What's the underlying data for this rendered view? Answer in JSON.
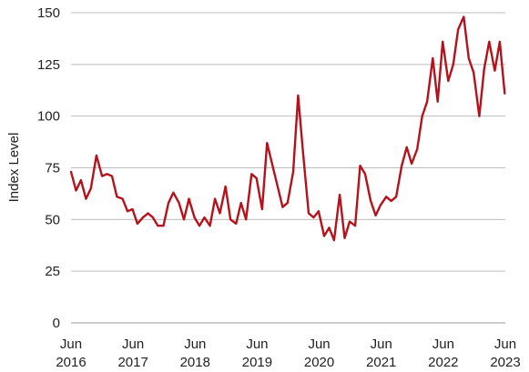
{
  "chart_data": {
    "type": "line",
    "ylabel": "Index Level",
    "xlabel": "",
    "ylim": [
      0,
      150
    ],
    "yticks": [
      0,
      25,
      50,
      75,
      100,
      125,
      150
    ],
    "xlim": [
      2016.5,
      2023.5
    ],
    "xticks": [
      {
        "value": 2016.5,
        "month": "Jun",
        "year": "2016"
      },
      {
        "value": 2017.5,
        "month": "Jun",
        "year": "2017"
      },
      {
        "value": 2018.5,
        "month": "Jun",
        "year": "2018"
      },
      {
        "value": 2019.5,
        "month": "Jun",
        "year": "2019"
      },
      {
        "value": 2020.5,
        "month": "Jun",
        "year": "2020"
      },
      {
        "value": 2021.5,
        "month": "Jun",
        "year": "2021"
      },
      {
        "value": 2022.5,
        "month": "Jun",
        "year": "2022"
      },
      {
        "value": 2023.5,
        "month": "Jun",
        "year": "2023"
      }
    ],
    "grid": "horizontal",
    "color": "#b5121b",
    "series": [
      {
        "name": "",
        "points": [
          [
            2016.5,
            73
          ],
          [
            2016.58,
            64
          ],
          [
            2016.66,
            69
          ],
          [
            2016.74,
            60
          ],
          [
            2016.82,
            65
          ],
          [
            2016.91,
            81
          ],
          [
            2017.0,
            71
          ],
          [
            2017.08,
            72
          ],
          [
            2017.16,
            71
          ],
          [
            2017.24,
            61
          ],
          [
            2017.33,
            60
          ],
          [
            2017.41,
            54
          ],
          [
            2017.49,
            55
          ],
          [
            2017.57,
            48
          ],
          [
            2017.66,
            51
          ],
          [
            2017.74,
            53
          ],
          [
            2017.82,
            51
          ],
          [
            2017.9,
            47
          ],
          [
            2017.99,
            47
          ],
          [
            2018.07,
            58
          ],
          [
            2018.15,
            63
          ],
          [
            2018.24,
            58
          ],
          [
            2018.32,
            50
          ],
          [
            2018.4,
            60
          ],
          [
            2018.49,
            51
          ],
          [
            2018.57,
            47
          ],
          [
            2018.65,
            51
          ],
          [
            2018.74,
            47
          ],
          [
            2018.82,
            60
          ],
          [
            2018.9,
            53
          ],
          [
            2018.99,
            66
          ],
          [
            2019.07,
            50
          ],
          [
            2019.16,
            48
          ],
          [
            2019.24,
            58
          ],
          [
            2019.32,
            50
          ],
          [
            2019.41,
            72
          ],
          [
            2019.49,
            70
          ],
          [
            2019.58,
            55
          ],
          [
            2019.66,
            87
          ],
          [
            2019.74,
            77
          ],
          [
            2019.83,
            66
          ],
          [
            2019.91,
            56
          ],
          [
            2019.99,
            58
          ],
          [
            2020.08,
            73
          ],
          [
            2020.16,
            110
          ],
          [
            2020.24,
            82
          ],
          [
            2020.33,
            53
          ],
          [
            2020.41,
            51
          ],
          [
            2020.49,
            54
          ],
          [
            2020.58,
            42
          ],
          [
            2020.66,
            46
          ],
          [
            2020.74,
            40
          ],
          [
            2020.83,
            62
          ],
          [
            2020.91,
            41
          ],
          [
            2020.99,
            49
          ],
          [
            2021.08,
            47
          ],
          [
            2021.16,
            76
          ],
          [
            2021.24,
            72
          ],
          [
            2021.33,
            59
          ],
          [
            2021.41,
            52
          ],
          [
            2021.49,
            57
          ],
          [
            2021.58,
            61
          ],
          [
            2021.66,
            59
          ],
          [
            2021.74,
            61
          ],
          [
            2021.83,
            76
          ],
          [
            2021.91,
            85
          ],
          [
            2021.99,
            77
          ],
          [
            2022.08,
            84
          ],
          [
            2022.16,
            100
          ],
          [
            2022.24,
            107
          ],
          [
            2022.33,
            128
          ],
          [
            2022.41,
            107
          ],
          [
            2022.49,
            136
          ],
          [
            2022.58,
            117
          ],
          [
            2022.66,
            125
          ],
          [
            2022.74,
            142
          ],
          [
            2022.83,
            148
          ],
          [
            2022.91,
            128
          ],
          [
            2022.99,
            121
          ],
          [
            2023.08,
            100
          ],
          [
            2023.16,
            123
          ],
          [
            2023.24,
            136
          ],
          [
            2023.33,
            122
          ],
          [
            2023.41,
            136
          ],
          [
            2023.49,
            111
          ]
        ]
      }
    ]
  }
}
